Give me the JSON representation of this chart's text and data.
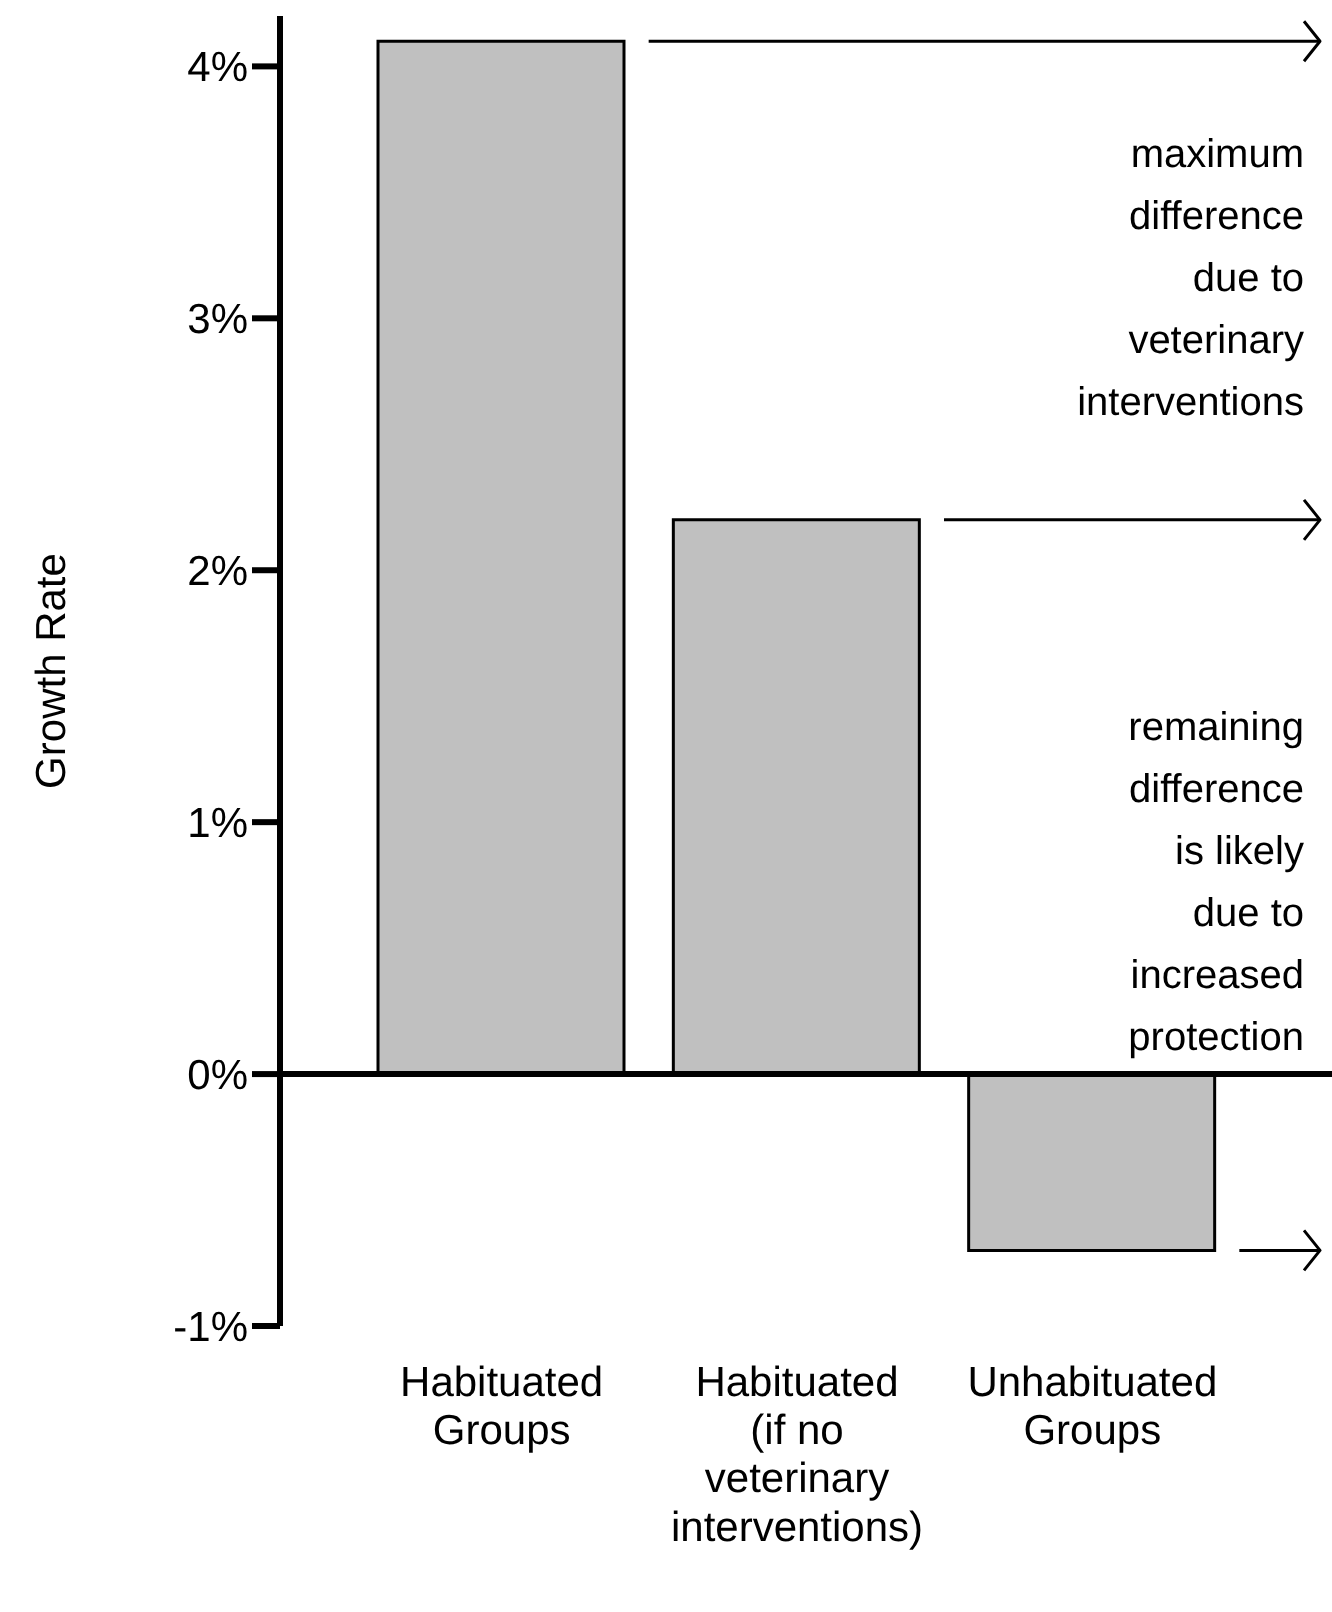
{
  "chart_data": {
    "type": "bar",
    "ylabel": "Growth Rate",
    "categories": [
      "Habituated\nGroups",
      "Habituated\n(if no\nveterinary\ninterventions)",
      "Unhabituated\nGroups"
    ],
    "values": [
      4.1,
      2.2,
      -0.7
    ],
    "color": "#c0c0c0",
    "ylim": [
      -1,
      4.2
    ],
    "yticks": [
      {
        "value": -1,
        "label": "-1%"
      },
      {
        "value": 0,
        "label": "0%"
      },
      {
        "value": 1,
        "label": "1%"
      },
      {
        "value": 2,
        "label": "2%"
      },
      {
        "value": 3,
        "label": "3%"
      },
      {
        "value": 4,
        "label": "4%"
      }
    ],
    "ref_lines": [
      {
        "axis": "y",
        "value": 4.1,
        "color": "#000000",
        "line_style": "solid"
      },
      {
        "axis": "y",
        "value": 2.2,
        "color": "#000000",
        "line_style": "solid"
      }
    ],
    "annotations": [
      "maximum\ndifference\ndue to\nveterinary\ninterventions",
      "remaining\ndifference\nis likely\ndue to\nincreased\nprotection"
    ]
  }
}
